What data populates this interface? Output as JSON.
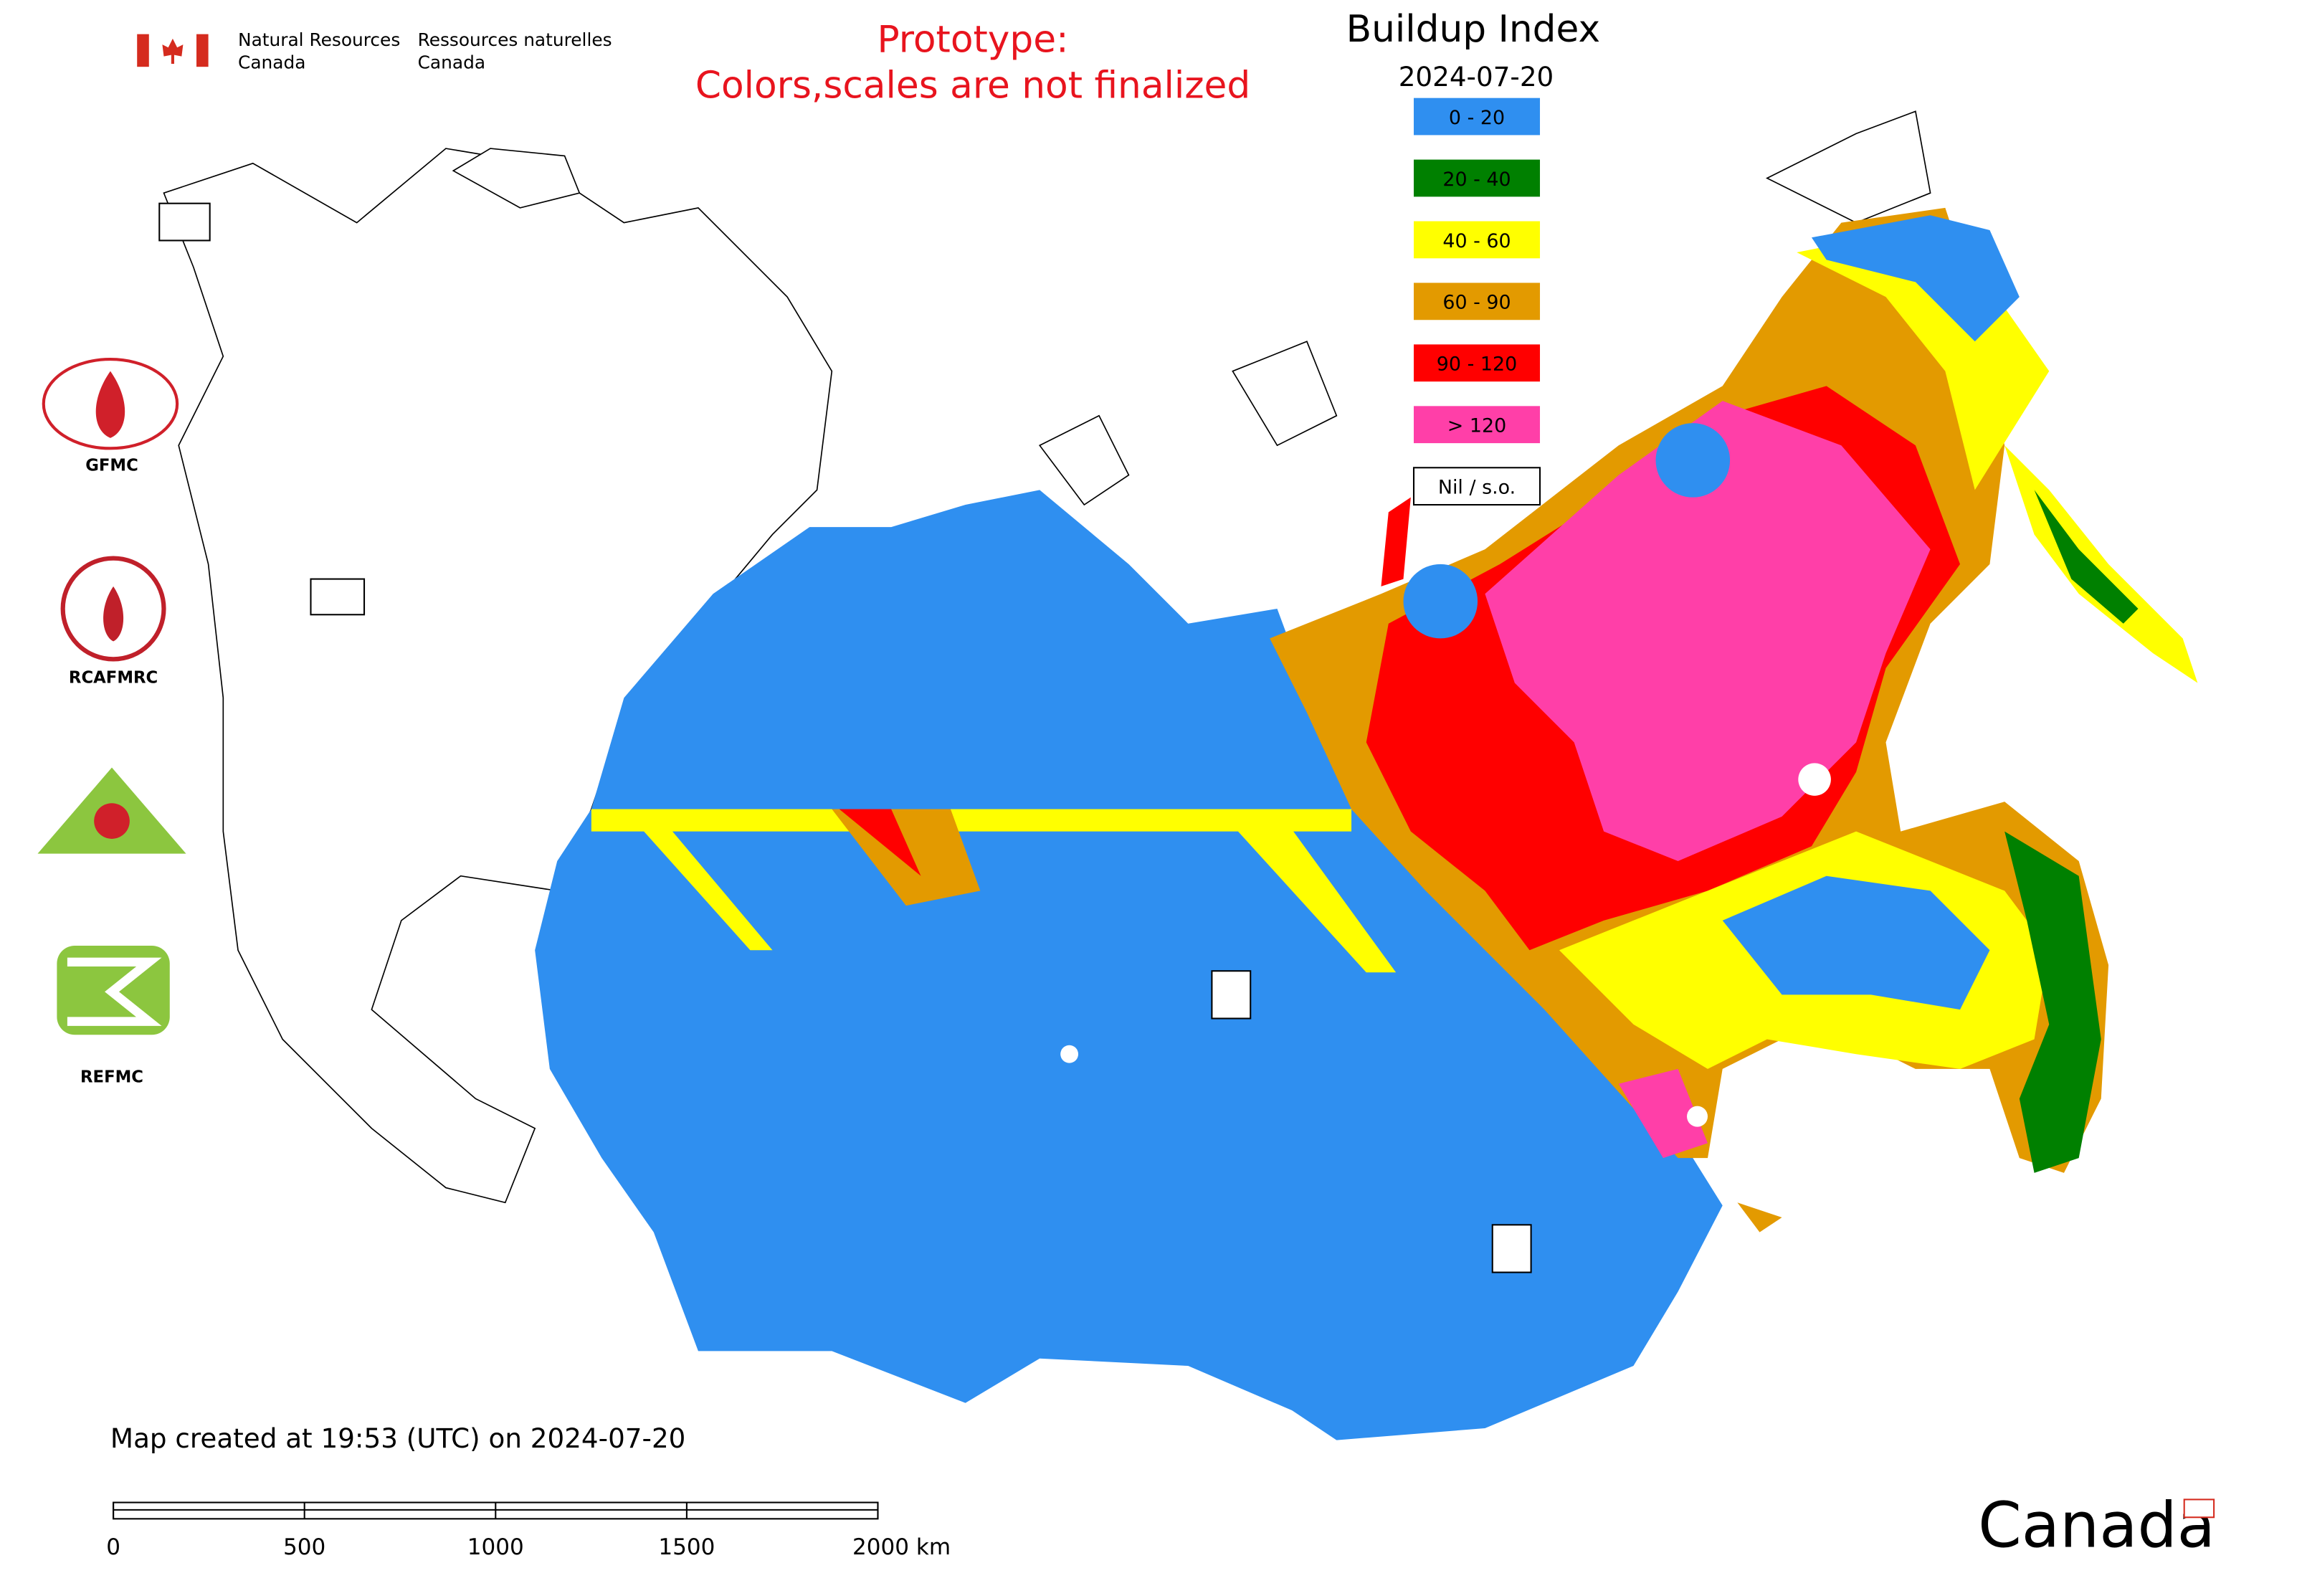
{
  "header": {
    "agency_en": [
      "Natural Resources",
      "Canada"
    ],
    "agency_fr": [
      "Ressources naturelles",
      "Canada"
    ]
  },
  "notice": [
    "Prototype:",
    "Colors,scales are not finalized"
  ],
  "title": "Buildup Index",
  "date": "2024-07-20",
  "legend": [
    {
      "label": "0 - 20",
      "color": "#2f8ff0"
    },
    {
      "label": "20 - 40",
      "color": "#008000"
    },
    {
      "label": "40 - 60",
      "color": "#ffff00"
    },
    {
      "label": "60 - 90",
      "color": "#e39a00"
    },
    {
      "label": "90 - 120",
      "color": "#ff0000"
    },
    {
      "label": "> 120",
      "color": "#ff3fa8"
    },
    {
      "label": "Nil / s.o.",
      "color": "#ffffff"
    }
  ],
  "logos": [
    "GFMC",
    "RCAFMRC",
    "REFMC"
  ],
  "footer": "Map created at 19:53 (UTC) on 2024-07-20",
  "scale_bar": [
    "0",
    "500",
    "1000",
    "1500",
    "2000 km"
  ],
  "wordmark": "Canada"
}
